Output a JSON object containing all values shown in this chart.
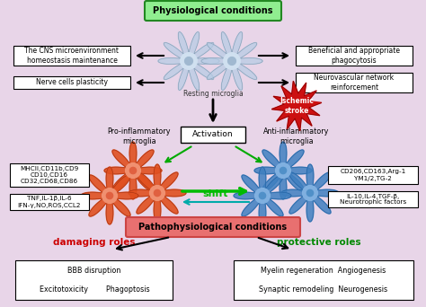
{
  "bg_color": "#e8d5e8",
  "title": "Physiological conditions",
  "title_bg": "#90EE90",
  "boxes_left_top": [
    "The CNS microenvironment\nhomeostasis maintenance",
    "Nerve cells plasticity"
  ],
  "boxes_right_top": [
    "Beneficial and appropriate\nphagocytosis",
    "Neurovascular network\nreinforcement"
  ],
  "boxes_left_mid": [
    "MHCII,CD11b,CD9\nCD10,CD16\nCD32,CD68,CD86",
    "TNF,IL-1β,IL-6\nIFN-γ,NO,ROS,CCL2"
  ],
  "boxes_right_mid": [
    "CD206,CD163,Arg-1\nYM1/2,TG-2",
    "IL-10,IL-4,TGF-β,\nNeurotrophic factors"
  ],
  "box_left_bottom": "BBB disruption\n\nExcitotoxicity        Phagoptosis",
  "box_right_bottom": "Myelin regeneration  Angiogenesis\n\nSynaptic remodeling  Neurogenesis",
  "label_resting": "Resting microglia",
  "label_activation": "Activation",
  "label_pro": "Pro-inflammatory\nmicroglia",
  "label_anti": "Anti-inflammatory\nmicroglia",
  "label_ischemic": "Ischemic\nstroke",
  "label_pathophys": "Pathophysiological conditions",
  "label_pathophys_bg": "#e87070",
  "label_damaging": "damaging roles",
  "label_damaging_color": "#cc0000",
  "label_protective": "protective roles",
  "label_protective_color": "#008800",
  "label_shift": "shift"
}
